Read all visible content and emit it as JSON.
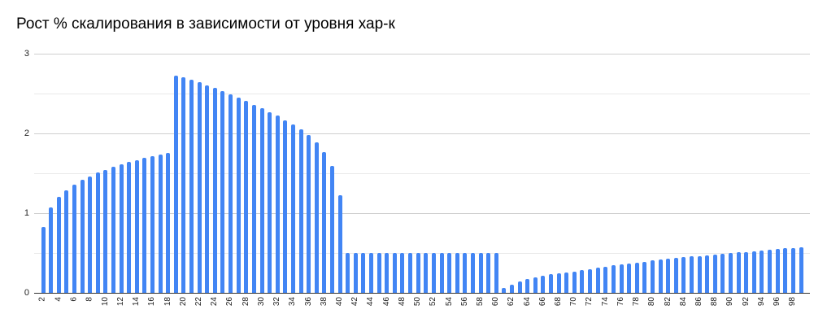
{
  "chart_data": {
    "type": "bar",
    "title": "Рост % скалирования в зависимости от уровня хар-к",
    "xlabel": "",
    "ylabel": "",
    "ylim": [
      0,
      3
    ],
    "y_tick_labels": [
      "0",
      "1",
      "2",
      "3"
    ],
    "y_gridlines": [
      0,
      0.5,
      1,
      1.5,
      2,
      2.5,
      3
    ],
    "x_tick_step": 2,
    "grid": true,
    "legend": "none",
    "categories": [
      2,
      3,
      4,
      5,
      6,
      7,
      8,
      9,
      10,
      11,
      12,
      13,
      14,
      15,
      16,
      17,
      18,
      19,
      20,
      21,
      22,
      23,
      24,
      25,
      26,
      27,
      28,
      29,
      30,
      31,
      32,
      33,
      34,
      35,
      36,
      37,
      38,
      39,
      40,
      41,
      42,
      43,
      44,
      45,
      46,
      47,
      48,
      49,
      50,
      51,
      52,
      53,
      54,
      55,
      56,
      57,
      58,
      59,
      60,
      61,
      62,
      63,
      64,
      65,
      66,
      67,
      68,
      69,
      70,
      71,
      72,
      73,
      74,
      75,
      76,
      77,
      78,
      79,
      80,
      81,
      82,
      83,
      84,
      85,
      86,
      87,
      88,
      89,
      90,
      91,
      92,
      93,
      94,
      95,
      96,
      97,
      98,
      99
    ],
    "values": [
      0.83,
      1.07,
      1.2,
      1.29,
      1.36,
      1.42,
      1.46,
      1.51,
      1.54,
      1.58,
      1.61,
      1.64,
      1.66,
      1.69,
      1.71,
      1.73,
      1.75,
      2.72,
      2.7,
      2.67,
      2.64,
      2.6,
      2.57,
      2.53,
      2.49,
      2.45,
      2.41,
      2.36,
      2.32,
      2.27,
      2.22,
      2.16,
      2.11,
      2.05,
      1.98,
      1.89,
      1.77,
      1.59,
      1.22,
      0.5,
      0.5,
      0.5,
      0.5,
      0.5,
      0.5,
      0.5,
      0.5,
      0.5,
      0.5,
      0.5,
      0.5,
      0.5,
      0.5,
      0.5,
      0.5,
      0.5,
      0.5,
      0.5,
      0.5,
      0.06,
      0.1,
      0.14,
      0.17,
      0.19,
      0.21,
      0.23,
      0.24,
      0.26,
      0.27,
      0.29,
      0.3,
      0.32,
      0.33,
      0.35,
      0.36,
      0.37,
      0.38,
      0.39,
      0.41,
      0.42,
      0.43,
      0.44,
      0.45,
      0.46,
      0.46,
      0.47,
      0.48,
      0.49,
      0.5,
      0.51,
      0.51,
      0.52,
      0.53,
      0.54,
      0.55,
      0.56,
      0.56,
      0.57
    ],
    "colors": {
      "bar": "#4285f4",
      "gridline_major": "#cfcfcf",
      "gridline_minor": "#e9e9e9",
      "axis_line": "#333333",
      "tick_label": "#222222",
      "title": "#000000",
      "background": "#ffffff"
    }
  }
}
